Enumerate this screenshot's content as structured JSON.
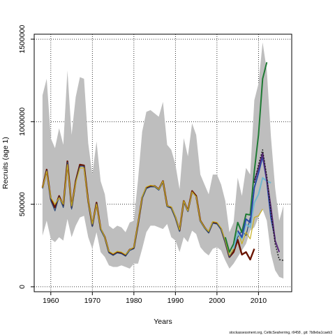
{
  "chart_data": {
    "type": "line",
    "xlabel": "Years",
    "ylabel": "Recruits (age 1)",
    "xlim": [
      1956,
      2018
    ],
    "ylim": [
      -30000,
      1530000
    ],
    "x_ticks": [
      1960,
      1970,
      1980,
      1990,
      2000,
      2010
    ],
    "y_ticks": [
      0,
      500000,
      1000000,
      1500000
    ],
    "grid": true,
    "grid_style": "dotted",
    "credit": "stockassessment.org,  CelticSeaherring,  r9458  ,  git:  7b8eba1caeb3",
    "band": {
      "x": [
        1958,
        1959,
        1960,
        1961,
        1962,
        1963,
        1964,
        1965,
        1966,
        1967,
        1968,
        1969,
        1970,
        1971,
        1972,
        1973,
        1974,
        1975,
        1976,
        1977,
        1978,
        1979,
        1980,
        1981,
        1982,
        1983,
        1984,
        1985,
        1986,
        1987,
        1988,
        1989,
        1990,
        1991,
        1992,
        1993,
        1994,
        1995,
        1996,
        1997,
        1998,
        1999,
        2000,
        2001,
        2002,
        2003,
        2004,
        2005,
        2006,
        2007,
        2008,
        2009,
        2010,
        2011,
        2012,
        2013,
        2014,
        2015,
        2016
      ],
      "lower": [
        310000,
        400000,
        290000,
        270000,
        300000,
        280000,
        410000,
        300000,
        370000,
        420000,
        430000,
        300000,
        230000,
        330000,
        210000,
        180000,
        130000,
        120000,
        120000,
        130000,
        120000,
        110000,
        140000,
        140000,
        230000,
        330000,
        370000,
        370000,
        360000,
        350000,
        380000,
        300000,
        280000,
        210000,
        300000,
        270000,
        340000,
        320000,
        240000,
        210000,
        190000,
        230000,
        240000,
        220000,
        160000,
        110000,
        140000,
        180000,
        220000,
        260000,
        340000,
        360000,
        420000,
        470000,
        400000,
        200000,
        100000,
        60000,
        50000
      ],
      "upper": [
        1160000,
        1260000,
        900000,
        840000,
        960000,
        860000,
        1310000,
        920000,
        1150000,
        1270000,
        1260000,
        870000,
        680000,
        880000,
        640000,
        560000,
        370000,
        350000,
        370000,
        360000,
        330000,
        390000,
        400000,
        650000,
        940000,
        1060000,
        1070000,
        1050000,
        1030000,
        1120000,
        860000,
        830000,
        740000,
        590000,
        900000,
        790000,
        990000,
        920000,
        680000,
        620000,
        560000,
        680000,
        680000,
        620000,
        520000,
        330000,
        390000,
        660000,
        550000,
        720000,
        680000,
        1130000,
        1230000,
        1480000,
        1310000,
        910000,
        600000,
        400000,
        490000
      ]
    },
    "series": [
      {
        "color": "#6a1400",
        "width": 2.4,
        "x": [
          1958,
          1959,
          1960,
          1961,
          1962,
          1963,
          1964,
          1965,
          1966,
          1967,
          1968,
          1969,
          1970,
          1971,
          1972,
          1973,
          1974,
          1975,
          1976,
          1977,
          1978,
          1979,
          1980,
          1981,
          1982,
          1983,
          1984,
          1985,
          1986,
          1987,
          1988,
          1989,
          1990,
          1991,
          1992,
          1993,
          1994,
          1995,
          1996,
          1997,
          1998,
          1999,
          2000,
          2001,
          2002,
          2003,
          2004,
          2005,
          2006,
          2007,
          2008,
          2009
        ],
        "values": [
          600000,
          710000,
          530000,
          480000,
          550000,
          490000,
          760000,
          480000,
          640000,
          740000,
          735000,
          520000,
          370000,
          510000,
          350000,
          300000,
          210000,
          195000,
          210000,
          205000,
          190000,
          225000,
          235000,
          380000,
          540000,
          600000,
          610000,
          610000,
          590000,
          640000,
          490000,
          480000,
          420000,
          340000,
          520000,
          460000,
          580000,
          550000,
          400000,
          360000,
          330000,
          390000,
          385000,
          350000,
          270000,
          180000,
          210000,
          285000,
          195000,
          210000,
          165000,
          230000
        ]
      },
      {
        "color": "#2a4a7a",
        "width": 1.2,
        "x": [
          1958,
          1959,
          1960,
          1961,
          1962,
          1963,
          1964,
          1965,
          1966,
          1967,
          1968,
          1969,
          1970,
          1971,
          1972,
          1973,
          1974,
          1975,
          1976,
          1977,
          1978,
          1979,
          1980,
          1981,
          1982,
          1983,
          1984,
          1985,
          1986,
          1987,
          1988,
          1989,
          1990,
          1991,
          1992,
          1993,
          1994,
          1995,
          1996,
          1997,
          1998,
          1999,
          2000,
          2001,
          2002,
          2003,
          2004,
          2005,
          2006,
          2007,
          2008
        ],
        "values": [
          595000,
          705000,
          520000,
          460000,
          545000,
          480000,
          755000,
          470000,
          635000,
          730000,
          730000,
          515000,
          365000,
          505000,
          345000,
          295000,
          205000,
          190000,
          205000,
          200000,
          185000,
          220000,
          230000,
          375000,
          535000,
          595000,
          605000,
          605000,
          585000,
          635000,
          485000,
          475000,
          415000,
          335000,
          515000,
          455000,
          575000,
          545000,
          395000,
          355000,
          325000,
          385000,
          380000,
          345000,
          265000,
          180000,
          230000,
          300000,
          340000,
          310000,
          420000
        ]
      },
      {
        "color": "#c8b020",
        "width": 1.2,
        "x": [
          1958,
          1959,
          1960,
          1961,
          1962,
          1963,
          1964,
          1965,
          1966,
          1967,
          1968,
          1969,
          1970,
          1971,
          1972,
          1973,
          1974,
          1975,
          1976,
          1977,
          1978,
          1979,
          1980,
          1981,
          1982,
          1983,
          1984,
          1985,
          1986,
          1987,
          1988,
          1989,
          1990,
          1991,
          1992,
          1993,
          1994,
          1995,
          1996,
          1997,
          1998,
          1999,
          2000,
          2001,
          2002,
          2003,
          2004,
          2005,
          2006,
          2007,
          2008,
          2009,
          2010,
          2011
        ],
        "values": [
          600000,
          700000,
          540000,
          500000,
          540000,
          500000,
          740000,
          490000,
          630000,
          720000,
          720000,
          520000,
          380000,
          500000,
          355000,
          300000,
          215000,
          200000,
          215000,
          210000,
          195000,
          225000,
          240000,
          385000,
          545000,
          605000,
          615000,
          610000,
          590000,
          640000,
          490000,
          485000,
          425000,
          345000,
          520000,
          460000,
          575000,
          545000,
          400000,
          360000,
          335000,
          395000,
          390000,
          355000,
          280000,
          190000,
          230000,
          340000,
          260000,
          330000,
          290000,
          420000,
          430000,
          470000
        ]
      },
      {
        "color": "#1e7a33",
        "width": 2.0,
        "x": [
          2002,
          2003,
          2004,
          2005,
          2006,
          2007,
          2008,
          2009,
          2010,
          2011,
          2012
        ],
        "values": [
          300000,
          210000,
          260000,
          390000,
          330000,
          440000,
          435000,
          700000,
          920000,
          1260000,
          1360000
        ]
      },
      {
        "color": "#70b8d0",
        "width": 2.0,
        "x": [
          2004,
          2005,
          2006,
          2007,
          2008,
          2009,
          2010,
          2011,
          2012,
          2013
        ],
        "values": [
          230000,
          330000,
          290000,
          380000,
          360000,
          510000,
          560000,
          660000,
          640000,
          630000
        ]
      },
      {
        "color": "#2a48a8",
        "width": 2.0,
        "x": [
          2005,
          2006,
          2007,
          2008,
          2009,
          2010,
          2011,
          2012,
          2013,
          2014
        ],
        "values": [
          340000,
          300000,
          410000,
          390000,
          600000,
          690000,
          790000,
          640000,
          420000,
          290000
        ]
      },
      {
        "color": "#5a2a7a",
        "width": 2.0,
        "x": [
          2009,
          2010,
          2011,
          2012,
          2013,
          2014,
          2015
        ],
        "values": [
          640000,
          720000,
          810000,
          650000,
          480000,
          280000,
          210000
        ]
      },
      {
        "color": "#1a1a1a",
        "width": 1.4,
        "dash": "2,2",
        "x": [
          2009,
          2010,
          2011,
          2012,
          2013,
          2014,
          2015,
          2016
        ],
        "values": [
          630000,
          740000,
          830000,
          670000,
          450000,
          260000,
          165000,
          160000
        ]
      }
    ]
  }
}
